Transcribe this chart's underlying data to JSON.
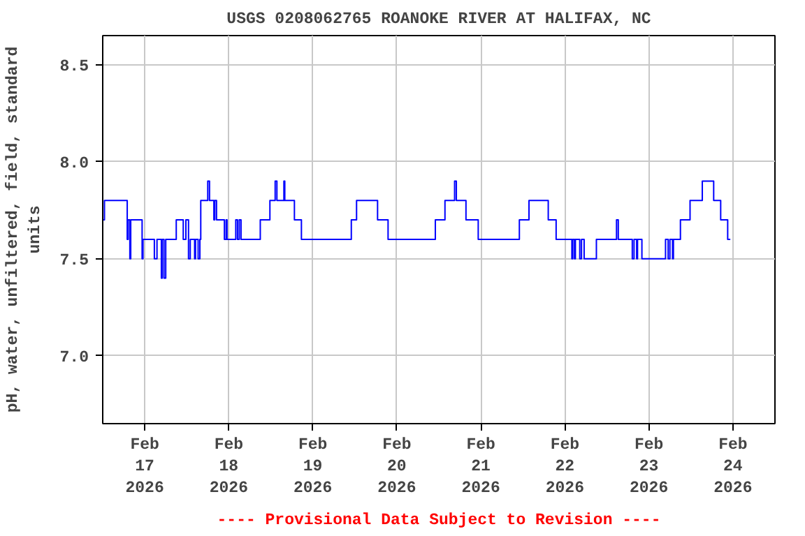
{
  "chart_data": {
    "type": "step",
    "title": "USGS 0208062765 ROANOKE RIVER AT HALIFAX, NC",
    "ylabel": "pH, water, unfiltered, field, standard units",
    "annotations": [
      "---- Provisional Data Subject to Revision ----"
    ],
    "x": [
      "2026-02-16T12:00",
      "2026-02-16T12:30",
      "2026-02-16T19:00",
      "2026-02-16T19:15",
      "2026-02-16T19:45",
      "2026-02-16T20:00",
      "2026-02-16T23:15",
      "2026-02-16T23:30",
      "2026-02-17T02:45",
      "2026-02-17T03:30",
      "2026-02-17T04:45",
      "2026-02-17T05:00",
      "2026-02-17T05:30",
      "2026-02-17T06:00",
      "2026-02-17T09:00",
      "2026-02-17T11:00",
      "2026-02-17T11:45",
      "2026-02-17T12:30",
      "2026-02-17T13:00",
      "2026-02-17T14:15",
      "2026-02-17T14:30",
      "2026-02-17T15:15",
      "2026-02-17T15:45",
      "2026-02-17T16:00",
      "2026-02-17T18:00",
      "2026-02-17T18:30",
      "2026-02-17T19:45",
      "2026-02-17T20:00",
      "2026-02-17T20:30",
      "2026-02-17T22:45",
      "2026-02-17T23:15",
      "2026-02-17T23:30",
      "2026-02-18T02:00",
      "2026-02-18T02:30",
      "2026-02-18T03:00",
      "2026-02-18T03:30",
      "2026-02-18T09:00",
      "2026-02-18T11:45",
      "2026-02-18T13:15",
      "2026-02-18T13:45",
      "2026-02-18T15:45",
      "2026-02-18T16:00",
      "2026-02-18T18:45",
      "2026-02-18T20:45",
      "2026-02-19T11:00",
      "2026-02-19T12:30",
      "2026-02-19T18:30",
      "2026-02-19T21:30",
      "2026-02-20T11:00",
      "2026-02-20T13:45",
      "2026-02-20T16:30",
      "2026-02-20T17:00",
      "2026-02-20T19:45",
      "2026-02-20T23:15",
      "2026-02-21T11:00",
      "2026-02-21T13:45",
      "2026-02-21T19:15",
      "2026-02-21T21:30",
      "2026-02-22T02:00",
      "2026-02-22T02:15",
      "2026-02-22T02:45",
      "2026-02-22T03:00",
      "2026-02-22T04:15",
      "2026-02-22T04:45",
      "2026-02-22T05:30",
      "2026-02-22T09:00",
      "2026-02-22T14:45",
      "2026-02-22T15:15",
      "2026-02-22T19:15",
      "2026-02-22T19:45",
      "2026-02-22T20:30",
      "2026-02-22T20:45",
      "2026-02-22T22:00",
      "2026-02-23T04:45",
      "2026-02-23T05:30",
      "2026-02-23T06:00",
      "2026-02-23T06:45",
      "2026-02-23T07:00",
      "2026-02-23T09:00",
      "2026-02-23T11:45",
      "2026-02-23T15:15",
      "2026-02-23T18:30",
      "2026-02-23T20:30",
      "2026-02-23T22:30",
      "2026-02-23T23:15"
    ],
    "series": [
      {
        "color": "#0000ff",
        "values": [
          7.7,
          7.8,
          7.6,
          7.7,
          7.5,
          7.7,
          7.5,
          7.6,
          7.5,
          7.6,
          7.4,
          7.6,
          7.4,
          7.6,
          7.7,
          7.6,
          7.7,
          7.5,
          7.6,
          7.5,
          7.6,
          7.5,
          7.6,
          7.8,
          7.9,
          7.8,
          7.7,
          7.8,
          7.7,
          7.6,
          7.7,
          7.6,
          7.7,
          7.6,
          7.7,
          7.6,
          7.7,
          7.8,
          7.9,
          7.8,
          7.9,
          7.8,
          7.7,
          7.6,
          7.7,
          7.8,
          7.7,
          7.6,
          7.7,
          7.8,
          7.9,
          7.8,
          7.7,
          7.6,
          7.7,
          7.8,
          7.7,
          7.6,
          7.5,
          7.6,
          7.5,
          7.6,
          7.5,
          7.6,
          7.5,
          7.6,
          7.7,
          7.6,
          7.5,
          7.6,
          7.5,
          7.6,
          7.5,
          7.6,
          7.5,
          7.6,
          7.5,
          7.6,
          7.7,
          7.8,
          7.9,
          7.8,
          7.7,
          7.6,
          7.6
        ]
      }
    ],
    "xlim": [
      "2026-02-16T12:00",
      "2026-02-24T12:00"
    ],
    "xticks": [
      {
        "value": "2026-02-17",
        "label": "Feb\n17\n2026"
      },
      {
        "value": "2026-02-18",
        "label": "Feb\n18\n2026"
      },
      {
        "value": "2026-02-19",
        "label": "Feb\n19\n2026"
      },
      {
        "value": "2026-02-20",
        "label": "Feb\n20\n2026"
      },
      {
        "value": "2026-02-21",
        "label": "Feb\n21\n2026"
      },
      {
        "value": "2026-02-22",
        "label": "Feb\n22\n2026"
      },
      {
        "value": "2026-02-23",
        "label": "Feb\n23\n2026"
      },
      {
        "value": "2026-02-24",
        "label": "Feb\n24\n2026"
      }
    ],
    "ylim": [
      6.65,
      8.65
    ],
    "yticks": [
      {
        "value": 7,
        "label": "7.0"
      },
      {
        "value": 7.5,
        "label": "7.5"
      },
      {
        "value": 8,
        "label": "8.0"
      },
      {
        "value": 8.5,
        "label": "8.5"
      }
    ],
    "grid": true,
    "line_style": "solid"
  }
}
